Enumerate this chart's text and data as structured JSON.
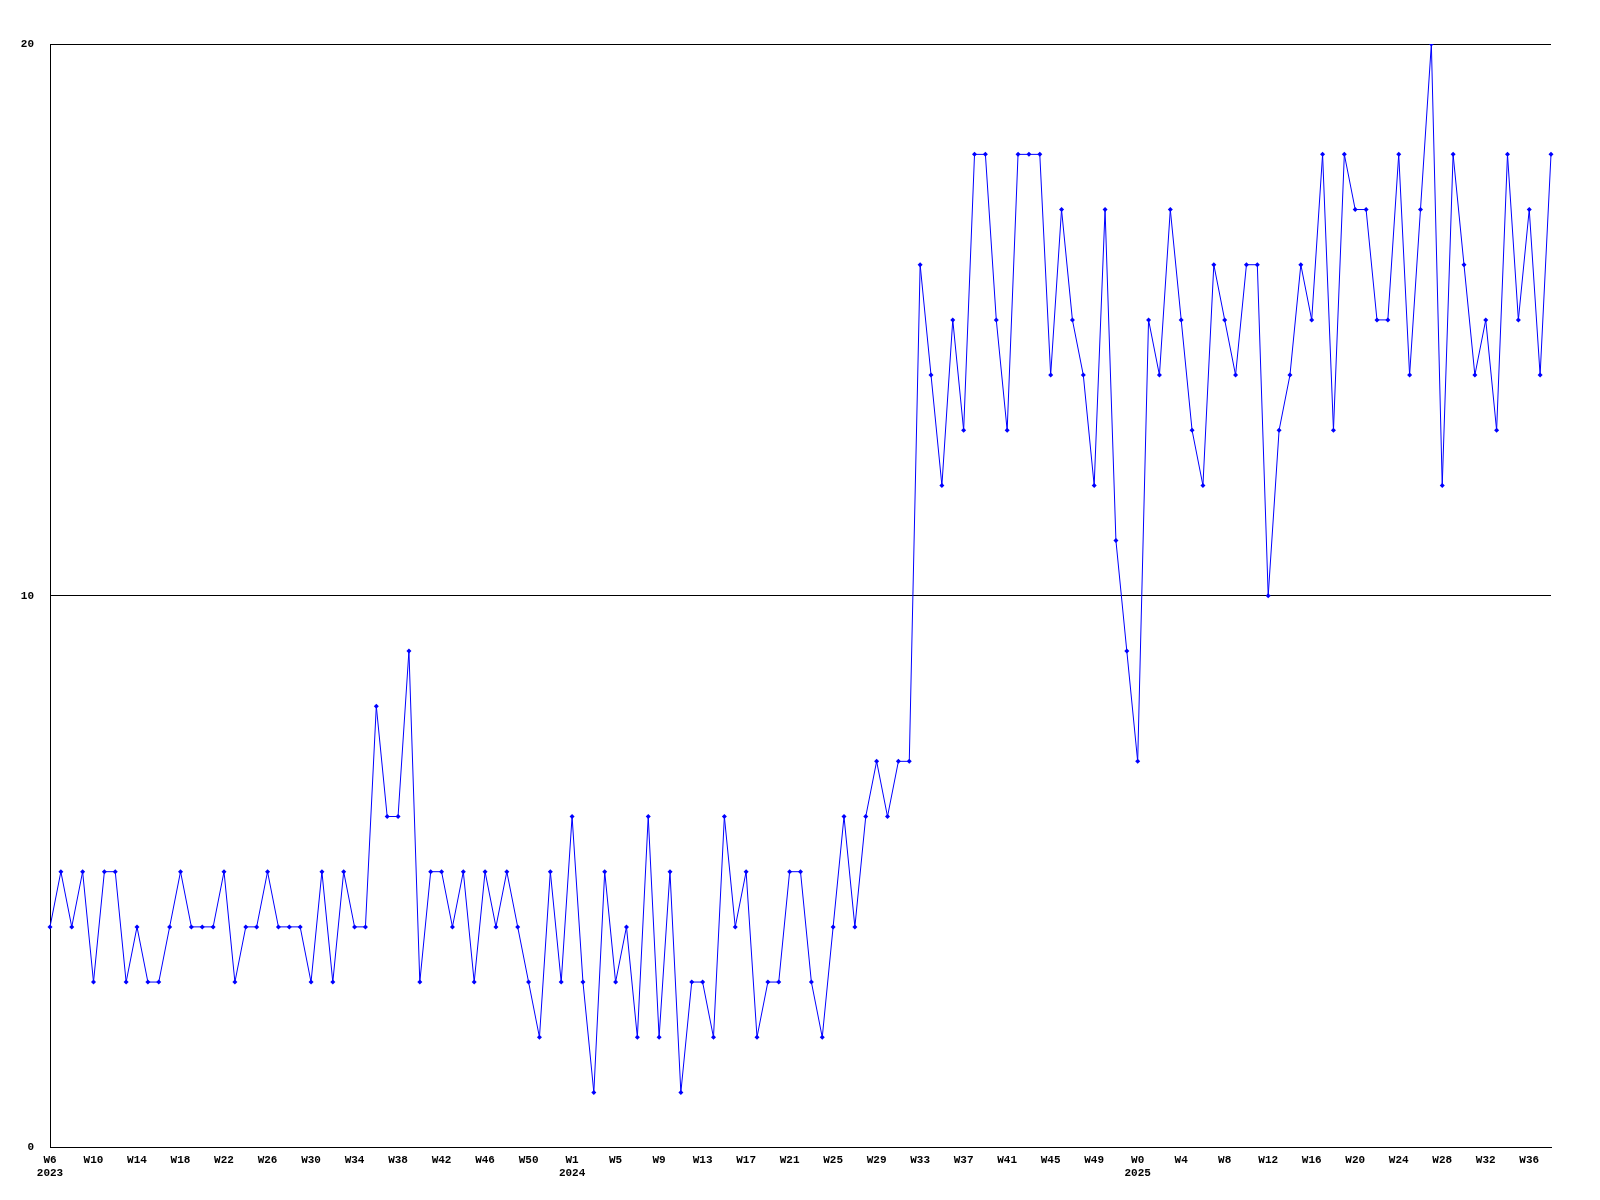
{
  "chart_data": {
    "type": "line",
    "categories": [
      "W6\n2023",
      null,
      null,
      null,
      "W10",
      null,
      null,
      null,
      "W14",
      null,
      null,
      null,
      "W18",
      null,
      null,
      null,
      "W22",
      null,
      null,
      null,
      "W26",
      null,
      null,
      null,
      "W30",
      null,
      null,
      null,
      "W34",
      null,
      null,
      null,
      "W38",
      null,
      null,
      null,
      "W42",
      null,
      null,
      null,
      "W46",
      null,
      null,
      null,
      "W50",
      null,
      null,
      null,
      "W1\n2024",
      null,
      null,
      null,
      "W5",
      null,
      null,
      null,
      "W9",
      null,
      null,
      null,
      "W13",
      null,
      null,
      null,
      "W17",
      null,
      null,
      null,
      "W21",
      null,
      null,
      null,
      "W25",
      null,
      null,
      null,
      "W29",
      null,
      null,
      null,
      "W33",
      null,
      null,
      null,
      "W37",
      null,
      null,
      null,
      "W41",
      null,
      null,
      null,
      "W45",
      null,
      null,
      null,
      "W49",
      null,
      null,
      null,
      "W0\n2025",
      null,
      null,
      null,
      "W4",
      null,
      null,
      null,
      "W8",
      null,
      null,
      null,
      "W12",
      null,
      null,
      null,
      "W16",
      null,
      null,
      null,
      "W20",
      null,
      null,
      null,
      "W24",
      null,
      null,
      null,
      "W28",
      null,
      null,
      null,
      "W32",
      null,
      null,
      null,
      "W36",
      null,
      null
    ],
    "values": [
      4,
      5,
      4,
      5,
      3,
      5,
      5,
      3,
      4,
      3,
      3,
      4,
      5,
      4,
      4,
      4,
      5,
      3,
      4,
      4,
      5,
      4,
      4,
      4,
      3,
      5,
      3,
      5,
      4,
      4,
      8,
      6,
      6,
      9,
      3,
      5,
      5,
      4,
      5,
      3,
      5,
      4,
      5,
      4,
      3,
      2,
      5,
      3,
      6,
      3,
      1,
      5,
      3,
      4,
      2,
      6,
      2,
      5,
      1,
      3,
      3,
      2,
      6,
      4,
      5,
      2,
      3,
      3,
      5,
      5,
      3,
      2,
      4,
      6,
      4,
      6,
      7,
      6,
      7,
      7,
      16,
      14,
      12,
      15,
      13,
      18,
      18,
      15,
      13,
      18,
      18,
      18,
      14,
      17,
      15,
      14,
      12,
      17,
      11,
      9,
      7,
      15,
      14,
      17,
      15,
      13,
      12,
      16,
      15,
      14,
      16,
      16,
      10,
      13,
      14,
      16,
      15,
      18,
      13,
      18,
      17,
      17,
      15,
      15,
      18,
      14,
      17,
      20,
      12,
      18,
      16,
      14,
      15,
      13,
      18,
      15,
      17,
      14,
      18
    ],
    "color": "#0000ff",
    "ylim": [
      0,
      20
    ],
    "yticks": [
      0,
      10,
      20
    ],
    "grid": "y",
    "marker": "diamond"
  }
}
